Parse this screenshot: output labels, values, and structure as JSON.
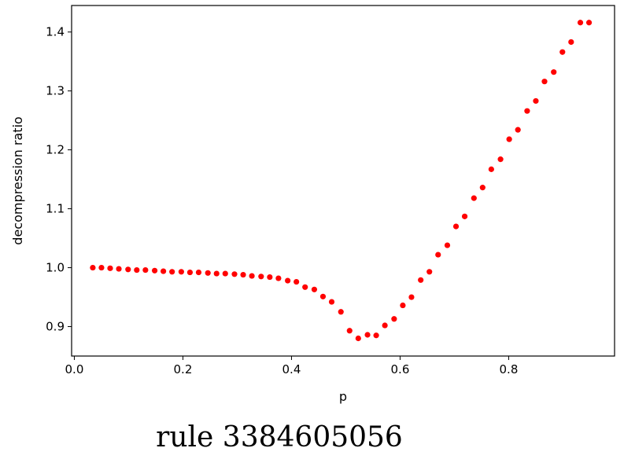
{
  "caption": "rule 3384605056",
  "chart_data": {
    "type": "scatter",
    "title": "",
    "xlabel": "p",
    "ylabel": "decompression ratio",
    "xlim": [
      -0.005,
      0.995
    ],
    "ylim": [
      0.85,
      1.445
    ],
    "xticks": [
      0.0,
      0.2,
      0.4,
      0.6,
      0.8
    ],
    "xtick_labels": [
      "0.0",
      "0.2",
      "0.4",
      "0.6",
      "0.8"
    ],
    "yticks": [
      0.9,
      1.0,
      1.1,
      1.2,
      1.3,
      1.4
    ],
    "ytick_labels": [
      "0.9",
      "1.0",
      "1.1",
      "1.2",
      "1.3",
      "1.4"
    ],
    "grid": false,
    "marker_color": "#ff0000",
    "series": [
      {
        "x": [
          0.034,
          0.05,
          0.066,
          0.082,
          0.099,
          0.115,
          0.131,
          0.148,
          0.164,
          0.18,
          0.197,
          0.213,
          0.229,
          0.246,
          0.262,
          0.278,
          0.295,
          0.311,
          0.327,
          0.344,
          0.36,
          0.376,
          0.393,
          0.409,
          0.425,
          0.442,
          0.458,
          0.474,
          0.491,
          0.507,
          0.523,
          0.54,
          0.556,
          0.572,
          0.589,
          0.605,
          0.621,
          0.638,
          0.654,
          0.67,
          0.687,
          0.703,
          0.719,
          0.736,
          0.752,
          0.768,
          0.785,
          0.801,
          0.817,
          0.834,
          0.85,
          0.866,
          0.883,
          0.899,
          0.915,
          0.932,
          0.948
        ],
        "y": [
          1.0,
          1.0,
          0.999,
          0.998,
          0.997,
          0.996,
          0.996,
          0.995,
          0.994,
          0.993,
          0.993,
          0.992,
          0.992,
          0.991,
          0.99,
          0.99,
          0.989,
          0.988,
          0.986,
          0.985,
          0.984,
          0.982,
          0.978,
          0.976,
          0.967,
          0.963,
          0.951,
          0.942,
          0.925,
          0.893,
          0.88,
          0.886,
          0.885,
          0.902,
          0.913,
          0.936,
          0.95,
          0.979,
          0.993,
          1.022,
          1.038,
          1.07,
          1.087,
          1.118,
          1.136,
          1.167,
          1.184,
          1.218,
          1.234,
          1.266,
          1.283,
          1.316,
          1.332,
          1.366,
          1.383,
          1.416,
          1.416
        ]
      }
    ]
  }
}
